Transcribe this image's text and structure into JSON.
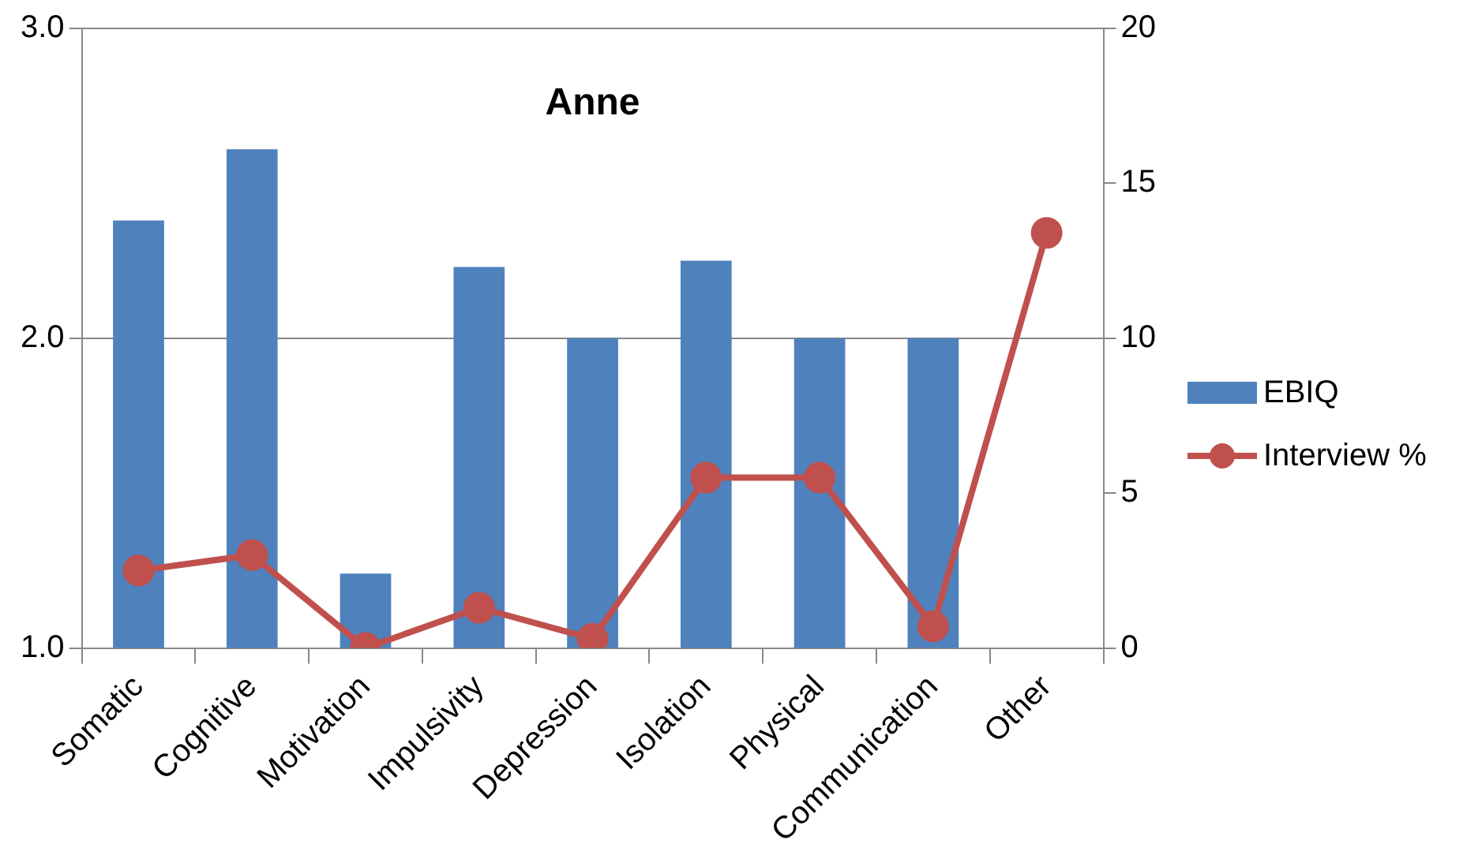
{
  "chart_data": {
    "type": "bar",
    "title": "Anne",
    "categories": [
      "Somatic",
      "Cognitive",
      "Motivation",
      "Impulsivity",
      "Depression",
      "Isolation",
      "Physical",
      "Communication",
      "Other"
    ],
    "series": [
      {
        "name": "EBIQ",
        "color": "#4f81bd",
        "values": [
          2.38,
          2.61,
          1.24,
          2.23,
          2.0,
          2.25,
          2.0,
          2.0,
          null
        ]
      },
      {
        "name": "Interview %",
        "type": "line",
        "axis": "y2",
        "color": "#c0504d",
        "marker": "circle",
        "values": [
          2.5,
          3.0,
          0,
          1.3,
          0.3,
          5.5,
          5.5,
          0.7,
          13.4
        ]
      }
    ],
    "ylim": [
      1,
      3
    ],
    "yticks": [
      {
        "value": 1,
        "label": "1.0"
      },
      {
        "value": 2,
        "label": "2.0"
      },
      {
        "value": 3,
        "label": "3.0"
      }
    ],
    "y2lim": [
      0,
      20
    ],
    "y2ticks": [
      0,
      5,
      10,
      15,
      20
    ],
    "grid": "y",
    "legend": "right"
  }
}
